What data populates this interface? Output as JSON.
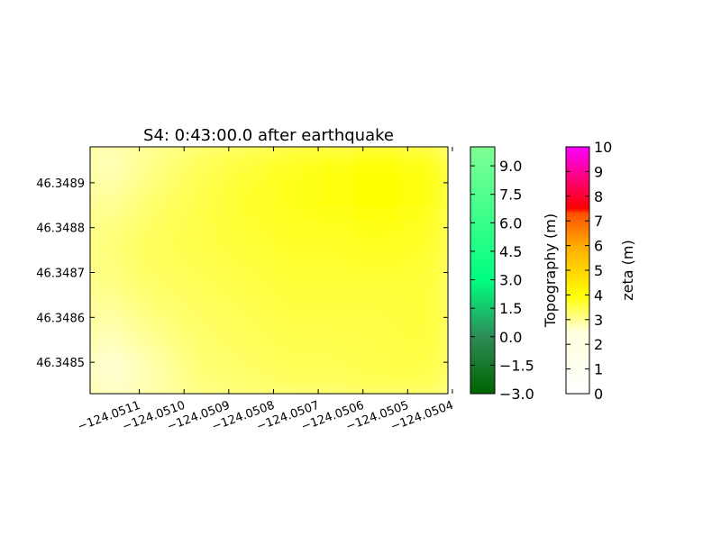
{
  "chart_data": [
    {
      "type": "heatmap",
      "title": "S4: 0:43:00.0 after earthquake",
      "xlabel": "",
      "ylabel": "",
      "x_ticks": [
        -124.0511,
        -124.051,
        -124.0509,
        -124.0508,
        -124.0507,
        -124.0506,
        -124.0505,
        -124.0504
      ],
      "x_tick_labels": [
        "−124.0511",
        "−124.0510",
        "−124.0509",
        "−124.0508",
        "−124.0507",
        "−124.0506",
        "−124.0505",
        "−124.0504"
      ],
      "y_ticks": [
        46.3485,
        46.3486,
        46.3487,
        46.3488,
        46.3489
      ],
      "y_tick_labels": [
        "46.3485",
        "46.3486",
        "46.3487",
        "46.3488",
        "46.3489"
      ],
      "xlim": [
        -124.05121,
        -124.05041
      ],
      "ylim": [
        46.34843,
        46.34898
      ],
      "grid": false,
      "field": "zeta (m)",
      "approx_values": [
        [
          2.7,
          3.1,
          3.4,
          3.6,
          3.8,
          3.9,
          4.0,
          3.9
        ],
        [
          3.0,
          3.3,
          3.5,
          3.7,
          3.8,
          3.9,
          4.0,
          3.9
        ],
        [
          3.2,
          3.4,
          3.5,
          3.6,
          3.7,
          3.7,
          3.8,
          3.7
        ],
        [
          3.1,
          3.3,
          3.4,
          3.5,
          3.6,
          3.6,
          3.6,
          3.6
        ],
        [
          2.8,
          3.1,
          3.3,
          3.4,
          3.5,
          3.5,
          3.5,
          3.6
        ],
        [
          2.5,
          2.8,
          3.2,
          3.3,
          3.4,
          3.4,
          3.5,
          3.5
        ]
      ]
    },
    {
      "type": "colorbar",
      "label": "Topography (m)",
      "range": [
        -3.0,
        10.0
      ],
      "ticks": [
        -3.0,
        -1.5,
        0.0,
        1.5,
        3.0,
        4.5,
        6.0,
        7.5,
        9.0
      ],
      "tick_labels": [
        "−3.0",
        "−1.5",
        "0.0",
        "1.5",
        "3.0",
        "4.5",
        "6.0",
        "7.5",
        "9.0"
      ],
      "colors": [
        "#006400",
        "#2e8b57",
        "#00ff80",
        "#80ff95"
      ]
    },
    {
      "type": "colorbar",
      "label": "zeta (m)",
      "range": [
        0,
        10
      ],
      "ticks": [
        0,
        1,
        2,
        3,
        4,
        5,
        6,
        7,
        8,
        9,
        10
      ],
      "tick_labels": [
        "0",
        "1",
        "2",
        "3",
        "4",
        "5",
        "6",
        "7",
        "8",
        "9",
        "10"
      ],
      "colors": [
        "#ffffff",
        "#ffff00",
        "#ff0000",
        "#ff00ff"
      ]
    }
  ]
}
